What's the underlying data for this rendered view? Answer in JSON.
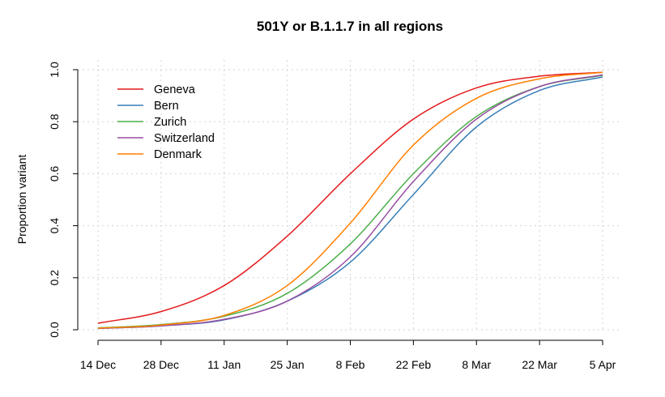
{
  "chart_data": {
    "type": "line",
    "title": "501Y or B.1.1.7 in all regions",
    "xlabel": "",
    "ylabel": "Proportion variant",
    "x_ticks": [
      "14 Dec",
      "28 Dec",
      "11 Jan",
      "25 Jan",
      "8 Feb",
      "22 Feb",
      "8 Mar",
      "22 Mar",
      "5 Apr"
    ],
    "xlim": [
      "14 Dec",
      "5 Apr"
    ],
    "ylim": [
      0,
      1
    ],
    "y_ticks": [
      "0.0",
      "0.2",
      "0.4",
      "0.6",
      "0.8",
      "1.0"
    ],
    "grid": true,
    "legend_position": "top-left",
    "series": [
      {
        "name": "Geneva",
        "color": "#e41a1c",
        "x": [
          "14 Dec",
          "28 Dec",
          "11 Jan",
          "25 Jan",
          "8 Feb",
          "22 Feb",
          "8 Mar",
          "22 Mar",
          "5 Apr"
        ],
        "y": [
          0.025,
          0.07,
          0.17,
          0.36,
          0.6,
          0.81,
          0.93,
          0.975,
          0.99
        ]
      },
      {
        "name": "Bern",
        "color": "#377eb8",
        "x": [
          "14 Dec",
          "28 Dec",
          "11 Jan",
          "25 Jan",
          "8 Feb",
          "22 Feb",
          "8 Mar",
          "22 Mar",
          "5 Apr"
        ],
        "y": [
          0.005,
          0.015,
          0.038,
          0.11,
          0.26,
          0.52,
          0.78,
          0.92,
          0.972
        ]
      },
      {
        "name": "Zurich",
        "color": "#4daf4a",
        "x": [
          "14 Dec",
          "28 Dec",
          "11 Jan",
          "25 Jan",
          "8 Feb",
          "22 Feb",
          "8 Mar",
          "22 Mar",
          "5 Apr"
        ],
        "y": [
          0.007,
          0.02,
          0.052,
          0.14,
          0.33,
          0.6,
          0.82,
          0.935,
          0.978
        ]
      },
      {
        "name": "Switzerland",
        "color": "#984ea3",
        "x": [
          "14 Dec",
          "28 Dec",
          "11 Jan",
          "25 Jan",
          "8 Feb",
          "22 Feb",
          "8 Mar",
          "22 Mar",
          "5 Apr"
        ],
        "y": [
          0.005,
          0.015,
          0.04,
          0.11,
          0.28,
          0.57,
          0.81,
          0.935,
          0.98
        ]
      },
      {
        "name": "Denmark",
        "color": "#ff7f00",
        "x": [
          "14 Dec",
          "28 Dec",
          "11 Jan",
          "25 Jan",
          "8 Feb",
          "22 Feb",
          "8 Mar",
          "22 Mar",
          "5 Apr"
        ],
        "y": [
          0.006,
          0.018,
          0.055,
          0.17,
          0.41,
          0.71,
          0.89,
          0.965,
          0.99
        ]
      }
    ]
  }
}
